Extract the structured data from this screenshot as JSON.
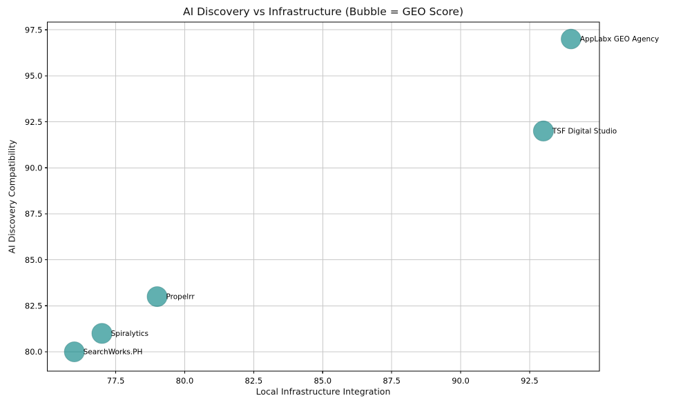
{
  "chart_data": {
    "type": "scatter",
    "title": "AI Discovery vs Infrastructure (Bubble = GEO Score)",
    "xlabel": "Local Infrastructure Integration",
    "ylabel": "AI Discovery Compatibility",
    "grid": true,
    "legend": false,
    "xlim": [
      75.02,
      95.03
    ],
    "ylim": [
      78.95,
      97.92
    ],
    "xticks": [
      77.5,
      80.0,
      82.5,
      85.0,
      87.5,
      90.0,
      92.5
    ],
    "yticks": [
      80.0,
      82.5,
      85.0,
      87.5,
      90.0,
      92.5,
      95.0,
      97.5
    ],
    "tick_decimals": 1,
    "bubble_note": "Bubble size encodes GEO Score (no numeric values printed on chart)",
    "colors": {
      "bubble_fill": "#008080",
      "bubble_fill_opacity": 0.62,
      "bubble_edge": "#2f7f7f",
      "grid": "#c8c8c8",
      "spine": "#000000",
      "text": "#000000"
    },
    "points": [
      {
        "label": "SearchWorks.PH",
        "x": 76,
        "y": 80,
        "bubble_px_radius": 14.5
      },
      {
        "label": "Spiralytics",
        "x": 77,
        "y": 81,
        "bubble_px_radius": 14.6
      },
      {
        "label": "Propelrr",
        "x": 79,
        "y": 83,
        "bubble_px_radius": 14.5
      },
      {
        "label": "TSF Digital Studio",
        "x": 93,
        "y": 92,
        "bubble_px_radius": 14.6
      },
      {
        "label": "AppLabx GEO Agency",
        "x": 94,
        "y": 97,
        "bubble_px_radius": 14.3
      }
    ]
  }
}
